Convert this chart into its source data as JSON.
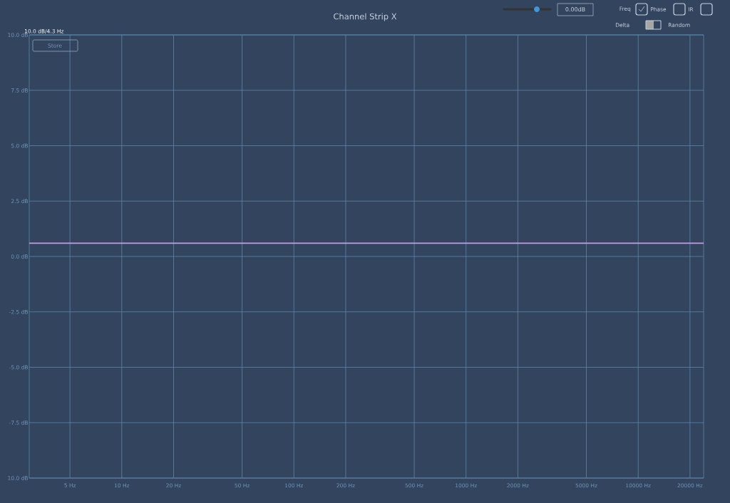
{
  "chart_data": {
    "type": "line",
    "title": "Channel Strip X",
    "x": [
      2.9,
      24000
    ],
    "series": [
      {
        "color": "#c89ae6",
        "values": [
          0.6,
          0.6
        ]
      }
    ],
    "xlim": [
      2.9,
      24000
    ],
    "ylim": [
      -10,
      10
    ],
    "log": "x",
    "grid": true,
    "xticks": [
      {
        "value": 5,
        "label": "5 Hz"
      },
      {
        "value": 10,
        "label": "10 Hz"
      },
      {
        "value": 20,
        "label": "20 Hz"
      },
      {
        "value": 50,
        "label": "50 Hz"
      },
      {
        "value": 100,
        "label": "100 Hz"
      },
      {
        "value": 200,
        "label": "200 Hz"
      },
      {
        "value": 500,
        "label": "500 Hz"
      },
      {
        "value": 1000,
        "label": "1000 Hz"
      },
      {
        "value": 2000,
        "label": "2000 Hz"
      },
      {
        "value": 5000,
        "label": "5000 Hz"
      },
      {
        "value": 10000,
        "label": "10000 Hz"
      },
      {
        "value": 20000,
        "label": "20000 Hz"
      }
    ],
    "yticks": [
      {
        "value": -10,
        "label": "10.0 dB"
      },
      {
        "value": -7.5,
        "label": "-7.5 dB"
      },
      {
        "value": -5,
        "label": "-5.0 dB"
      },
      {
        "value": -2.5,
        "label": "-2.5 dB"
      },
      {
        "value": 0,
        "label": "0.0 dB"
      },
      {
        "value": 2.5,
        "label": "2.5 dB"
      },
      {
        "value": 5,
        "label": "5.0 dB"
      },
      {
        "value": 7.5,
        "label": "7.5 dB"
      },
      {
        "value": 10,
        "label": "10.0 dB"
      }
    ],
    "annotations": [
      "10.0 dB/4.3 Hz",
      "Store",
      "0.00dB",
      "Freq",
      "Phase",
      "IR",
      "Delta",
      "Random"
    ]
  }
}
